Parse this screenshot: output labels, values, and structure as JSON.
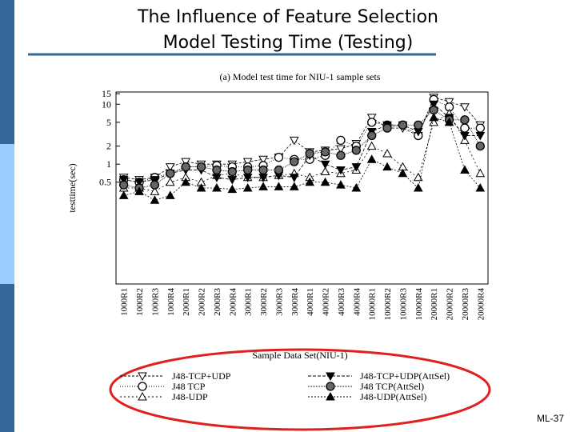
{
  "header": {
    "title_line1": "The Influence of Feature Selection",
    "title_line2": "Model Testing Time (Testing)"
  },
  "footer": {
    "page_label": "ML-37"
  },
  "chart_data": {
    "type": "line",
    "title": "(a) Model test time for NIU-1 sample sets",
    "x_label": "Sample Data Set(NIU-1)",
    "y_label": "testtime(sec)",
    "log_y": true,
    "ylim": [
      0.01,
      16
    ],
    "yticks": [
      0.5,
      1,
      2,
      5,
      10,
      15
    ],
    "categories": [
      "1000R1",
      "1000R2",
      "1000R3",
      "1000R4",
      "2000R1",
      "2000R2",
      "2000R3",
      "2000R4",
      "3000R1",
      "3000R2",
      "3000R3",
      "3000R4",
      "4000R1",
      "4000R2",
      "4000R3",
      "4000R4",
      "10000R1",
      "10000R2",
      "10000R3",
      "10000R4",
      "20000R1",
      "20000R2",
      "20000R3",
      "20000R4"
    ],
    "series": [
      {
        "name": "J48-TCP+UDP",
        "color": "#000000",
        "marker": "tri-down-open",
        "values": [
          0.6,
          0.55,
          0.6,
          0.9,
          1.1,
          1.0,
          1.0,
          1.0,
          1.1,
          1.2,
          1.3,
          2.5,
          1.6,
          1.7,
          1.8,
          2.2,
          6,
          4,
          4,
          3,
          13,
          11,
          9,
          4.5
        ]
      },
      {
        "name": "J48 TCP",
        "color": "#000000",
        "marker": "circle-open",
        "values": [
          0.55,
          0.5,
          0.6,
          0.7,
          0.9,
          0.9,
          0.95,
          0.9,
          0.9,
          0.95,
          1.3,
          1.2,
          1.2,
          1.4,
          2.5,
          2.0,
          5,
          4.5,
          4.5,
          3,
          12,
          9,
          4,
          4
        ]
      },
      {
        "name": "J48-UDP",
        "color": "#000000",
        "marker": "tri-up-open",
        "values": [
          0.4,
          0.4,
          0.35,
          0.5,
          0.6,
          0.5,
          0.65,
          0.7,
          0.6,
          0.6,
          0.65,
          0.7,
          0.6,
          0.75,
          0.7,
          0.8,
          2,
          1.5,
          0.9,
          0.6,
          5,
          7,
          2.5,
          0.7
        ]
      },
      {
        "name": "J48-TCP+UDP(AttSel)",
        "color": "#000000",
        "marker": "tri-down-filled",
        "values": [
          0.55,
          0.5,
          0.55,
          0.7,
          0.8,
          0.8,
          0.6,
          0.55,
          0.6,
          0.6,
          0.65,
          0.6,
          1.4,
          1.0,
          0.8,
          0.9,
          3.5,
          4.5,
          4.5,
          3.5,
          10,
          6,
          3,
          3
        ]
      },
      {
        "name": "J48 TCP(AttSel)",
        "color": "#000000",
        "marker": "circle-half",
        "values": [
          0.45,
          0.4,
          0.45,
          0.7,
          0.9,
          0.9,
          0.8,
          0.75,
          0.8,
          0.8,
          0.8,
          1.1,
          1.5,
          1.6,
          1.4,
          1.7,
          3,
          4,
          4.5,
          4.5,
          8,
          5.5,
          5.5,
          2
        ]
      },
      {
        "name": "J48-UDP(AttSel)",
        "color": "#000000",
        "marker": "tri-up-filled",
        "values": [
          0.3,
          0.35,
          0.25,
          0.3,
          0.5,
          0.4,
          0.4,
          0.38,
          0.4,
          0.42,
          0.42,
          0.42,
          0.5,
          0.5,
          0.45,
          0.4,
          1.2,
          0.9,
          0.7,
          0.4,
          6,
          5,
          0.8,
          0.4
        ]
      }
    ]
  }
}
